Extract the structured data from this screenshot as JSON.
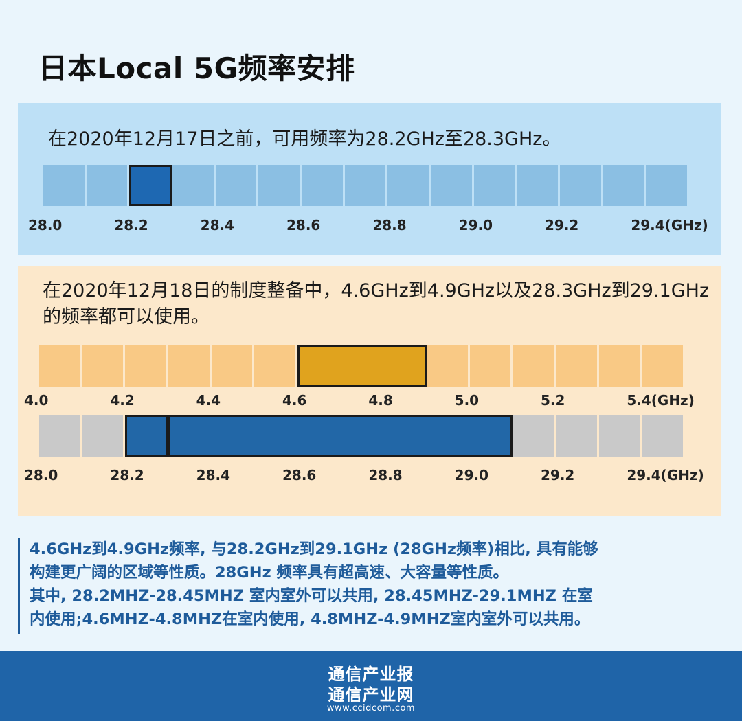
{
  "title": "日本Local 5G频率安排",
  "panel1": {
    "text": "在2020年12月17日之前，可用频率为28.2GHz至28.3GHz。"
  },
  "panel2": {
    "text": "在2020年12月18日的制度整备中，4.6GHz到4.9GHz以及28.3GHz到29.1GHz的频率都可以使用。"
  },
  "note": {
    "lines": [
      "4.6GHz到4.9GHz频率, 与28.2GHz到29.1GHz (28GHz频率)相比, 具有能够",
      "构建更广阔的区域等性质。28GHz 频率具有超高速、大容量等性质。",
      "其中, 28.2MHZ-28.45MHZ 室内室外可以共用, 28.45MHZ-29.1MHZ 在室",
      "内使用;4.6MHZ-4.8MHZ在室内使用, 4.8MHZ-4.9MHZ室内室外可以共用。"
    ]
  },
  "footer": {
    "line1": "通信产业报",
    "line2": "通信产业网",
    "url": "www.ccidcom.com"
  },
  "chart_data": [
    {
      "type": "band",
      "range": [
        28.0,
        29.5
      ],
      "segment_width": 0.1,
      "ticks": [
        "28.0",
        "28.2",
        "28.4",
        "28.6",
        "28.8",
        "29.0",
        "29.2",
        "29.4(GHz)"
      ],
      "base_color": "#8bbfe3",
      "highlights": [
        {
          "from": 28.2,
          "to": 28.3,
          "color": "#1e68b2"
        }
      ]
    },
    {
      "type": "band",
      "range": [
        4.0,
        5.5
      ],
      "segment_width": 0.1,
      "ticks": [
        "4.0",
        "4.2",
        "4.4",
        "4.6",
        "4.8",
        "5.0",
        "5.2",
        "5.4(GHz)"
      ],
      "base_color": "#f9c985",
      "highlights": [
        {
          "from": 4.6,
          "to": 4.9,
          "color": "#e0a31e"
        }
      ]
    },
    {
      "type": "band",
      "range": [
        28.0,
        29.5
      ],
      "segment_width": 0.1,
      "ticks": [
        "28.0",
        "28.2",
        "28.4",
        "28.6",
        "28.8",
        "29.0",
        "29.2",
        "29.4(GHz)"
      ],
      "base_color": "#c9c9c9",
      "highlights": [
        {
          "from": 28.2,
          "to": 28.3,
          "color": "#2267a7"
        },
        {
          "from": 28.3,
          "to": 29.1,
          "color": "#2267a7"
        }
      ]
    }
  ]
}
